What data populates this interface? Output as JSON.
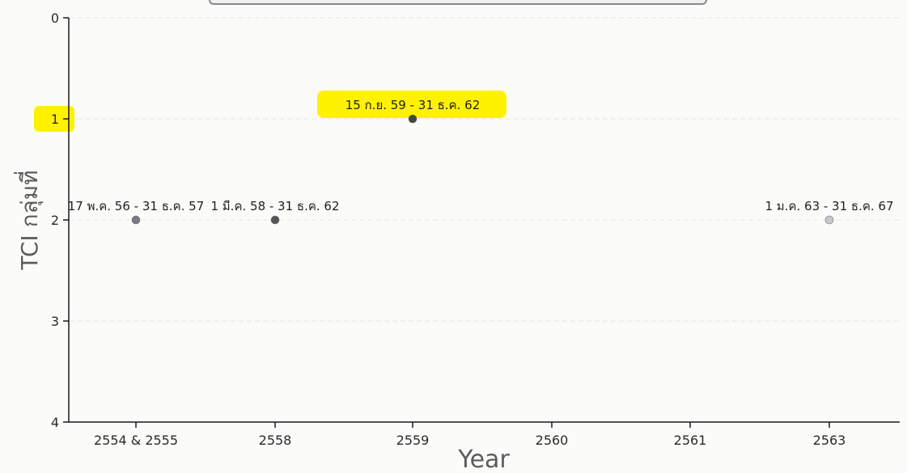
{
  "chart_data": {
    "type": "scatter",
    "title": "",
    "xlabel": "Year",
    "ylabel": "TCI กลุ่มที่",
    "categories": [
      "2554 & 2555",
      "2558",
      "2559",
      "2560",
      "2561",
      "2563"
    ],
    "ylim": [
      0,
      4
    ],
    "y_reversed": true,
    "yticks": [
      "0",
      "1",
      "2",
      "3",
      "4"
    ],
    "grid": true,
    "points": [
      {
        "x": "2554 & 2555",
        "y": 2,
        "label": "17 พ.ค. 56 - 31 ธ.ค. 57",
        "color": "#7a7a82"
      },
      {
        "x": "2558",
        "y": 2,
        "label": "1 มี.ค. 58 - 31 ธ.ค. 62",
        "color": "#55555c"
      },
      {
        "x": "2559",
        "y": 1,
        "label": "15 ก.ย. 59 - 31 ธ.ค. 62",
        "color": "#3f4a30",
        "highlight": true
      },
      {
        "x": "2563",
        "y": 2,
        "label": "1 ม.ค. 63 - 31 ธ.ค. 67",
        "color": "#c8c8cc"
      }
    ],
    "highlights": [
      "1"
    ],
    "highlight_color": "#fff200"
  }
}
